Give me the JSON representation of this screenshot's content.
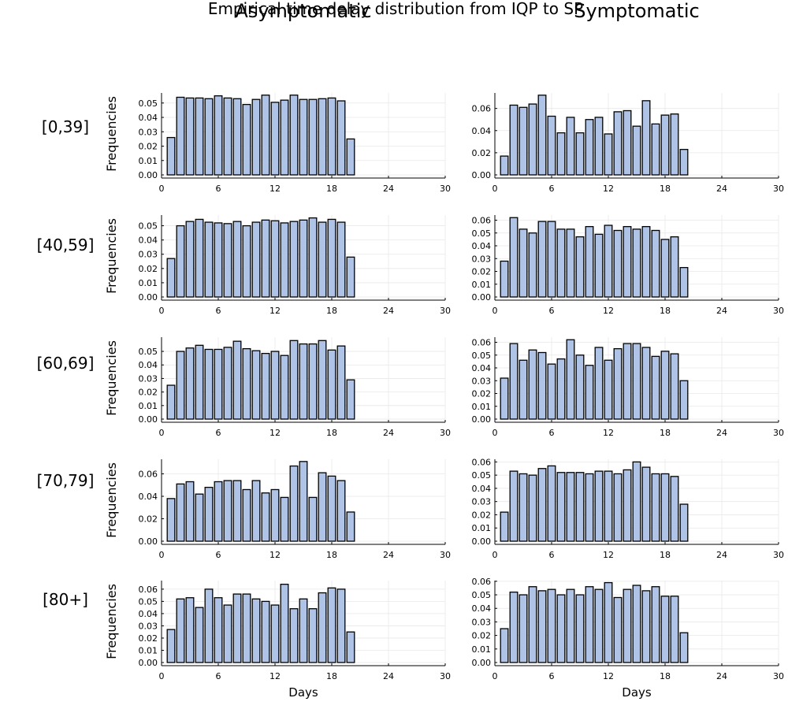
{
  "figure": {
    "title": "Empirical time delay distribution from IQP to SP",
    "column_titles": [
      "Asymptomatic",
      "Symptomatic"
    ],
    "row_labels": [
      "[0,39]",
      "[40,59]",
      "[60,69]",
      "[70,79]",
      "[80+]"
    ],
    "ylabel": "Frequencies",
    "xlabel": "Days"
  },
  "chart_data": [
    {
      "type": "bar",
      "group": "[0,39]",
      "panel": "Asymptomatic",
      "ylabel": "Frequencies",
      "xlabel": "",
      "xlim": [
        0,
        30
      ],
      "ylim": [
        0,
        0.057
      ],
      "xticks": [
        0,
        6,
        12,
        18,
        24,
        30
      ],
      "yticks": [
        0.0,
        0.01,
        0.02,
        0.03,
        0.04,
        0.05
      ],
      "x": [
        1,
        2,
        3,
        4,
        5,
        6,
        7,
        8,
        9,
        10,
        11,
        12,
        13,
        14,
        15,
        16,
        17,
        18,
        19,
        20
      ],
      "values": [
        0.026,
        0.054,
        0.0535,
        0.0535,
        0.053,
        0.055,
        0.0535,
        0.053,
        0.049,
        0.0525,
        0.0555,
        0.0505,
        0.052,
        0.0555,
        0.0525,
        0.0525,
        0.053,
        0.0535,
        0.0515,
        0.025
      ]
    },
    {
      "type": "bar",
      "group": "[0,39]",
      "panel": "Symptomatic",
      "ylabel": "",
      "xlabel": "",
      "xlim": [
        0,
        30
      ],
      "ylim": [
        0,
        0.074
      ],
      "xticks": [
        0,
        6,
        12,
        18,
        24,
        30
      ],
      "yticks": [
        0.0,
        0.02,
        0.04,
        0.06
      ],
      "x": [
        1,
        2,
        3,
        4,
        5,
        6,
        7,
        8,
        9,
        10,
        11,
        12,
        13,
        14,
        15,
        16,
        17,
        18,
        19,
        20
      ],
      "values": [
        0.017,
        0.063,
        0.061,
        0.064,
        0.072,
        0.053,
        0.038,
        0.052,
        0.038,
        0.05,
        0.052,
        0.037,
        0.057,
        0.058,
        0.044,
        0.067,
        0.046,
        0.054,
        0.055,
        0.023
      ]
    },
    {
      "type": "bar",
      "group": "[40,59]",
      "panel": "Asymptomatic",
      "ylabel": "Frequencies",
      "xlabel": "",
      "xlim": [
        0,
        30
      ],
      "ylim": [
        0,
        0.0575
      ],
      "xticks": [
        0,
        6,
        12,
        18,
        24,
        30
      ],
      "yticks": [
        0.0,
        0.01,
        0.02,
        0.03,
        0.04,
        0.05
      ],
      "x": [
        1,
        2,
        3,
        4,
        5,
        6,
        7,
        8,
        9,
        10,
        11,
        12,
        13,
        14,
        15,
        16,
        17,
        18,
        19,
        20
      ],
      "values": [
        0.027,
        0.05,
        0.053,
        0.0545,
        0.0525,
        0.052,
        0.0515,
        0.053,
        0.05,
        0.0525,
        0.054,
        0.0535,
        0.052,
        0.053,
        0.054,
        0.0555,
        0.0525,
        0.0545,
        0.0525,
        0.028
      ]
    },
    {
      "type": "bar",
      "group": "[40,59]",
      "panel": "Symptomatic",
      "ylabel": "",
      "xlabel": "",
      "xlim": [
        0,
        30
      ],
      "ylim": [
        0,
        0.064
      ],
      "xticks": [
        0,
        6,
        12,
        18,
        24,
        30
      ],
      "yticks": [
        0.0,
        0.01,
        0.02,
        0.03,
        0.04,
        0.05,
        0.06
      ],
      "x": [
        1,
        2,
        3,
        4,
        5,
        6,
        7,
        8,
        9,
        10,
        11,
        12,
        13,
        14,
        15,
        16,
        17,
        18,
        19,
        20
      ],
      "values": [
        0.028,
        0.062,
        0.053,
        0.05,
        0.059,
        0.059,
        0.053,
        0.053,
        0.047,
        0.055,
        0.049,
        0.056,
        0.052,
        0.055,
        0.053,
        0.055,
        0.052,
        0.045,
        0.047,
        0.023
      ]
    },
    {
      "type": "bar",
      "group": "[60,69]",
      "panel": "Asymptomatic",
      "ylabel": "Frequencies",
      "xlabel": "",
      "xlim": [
        0,
        30
      ],
      "ylim": [
        0,
        0.0605
      ],
      "xticks": [
        0,
        6,
        12,
        18,
        24,
        30
      ],
      "yticks": [
        0.0,
        0.01,
        0.02,
        0.03,
        0.04,
        0.05
      ],
      "x": [
        1,
        2,
        3,
        4,
        5,
        6,
        7,
        8,
        9,
        10,
        11,
        12,
        13,
        14,
        15,
        16,
        17,
        18,
        19,
        20
      ],
      "values": [
        0.025,
        0.05,
        0.0525,
        0.0545,
        0.0515,
        0.0515,
        0.053,
        0.0575,
        0.052,
        0.0505,
        0.0485,
        0.05,
        0.047,
        0.058,
        0.0555,
        0.0555,
        0.058,
        0.051,
        0.054,
        0.029
      ]
    },
    {
      "type": "bar",
      "group": "[60,69]",
      "panel": "Symptomatic",
      "ylabel": "",
      "xlabel": "",
      "xlim": [
        0,
        30
      ],
      "ylim": [
        0,
        0.064
      ],
      "xticks": [
        0,
        6,
        12,
        18,
        24,
        30
      ],
      "yticks": [
        0.0,
        0.01,
        0.02,
        0.03,
        0.04,
        0.05,
        0.06
      ],
      "x": [
        1,
        2,
        3,
        4,
        5,
        6,
        7,
        8,
        9,
        10,
        11,
        12,
        13,
        14,
        15,
        16,
        17,
        18,
        19,
        20
      ],
      "values": [
        0.032,
        0.059,
        0.046,
        0.054,
        0.052,
        0.043,
        0.047,
        0.062,
        0.05,
        0.042,
        0.056,
        0.046,
        0.055,
        0.059,
        0.059,
        0.056,
        0.049,
        0.053,
        0.051,
        0.03
      ]
    },
    {
      "type": "bar",
      "group": "[70,79]",
      "panel": "Asymptomatic",
      "ylabel": "Frequencies",
      "xlabel": "",
      "xlim": [
        0,
        30
      ],
      "ylim": [
        0,
        0.073
      ],
      "xticks": [
        0,
        6,
        12,
        18,
        24,
        30
      ],
      "yticks": [
        0.0,
        0.02,
        0.04,
        0.06
      ],
      "x": [
        1,
        2,
        3,
        4,
        5,
        6,
        7,
        8,
        9,
        10,
        11,
        12,
        13,
        14,
        15,
        16,
        17,
        18,
        19,
        20
      ],
      "values": [
        0.038,
        0.051,
        0.053,
        0.042,
        0.048,
        0.053,
        0.054,
        0.054,
        0.046,
        0.054,
        0.043,
        0.046,
        0.039,
        0.067,
        0.071,
        0.039,
        0.061,
        0.058,
        0.054,
        0.026
      ]
    },
    {
      "type": "bar",
      "group": "[70,79]",
      "panel": "Symptomatic",
      "ylabel": "",
      "xlabel": "",
      "xlim": [
        0,
        30
      ],
      "ylim": [
        0,
        0.062
      ],
      "xticks": [
        0,
        6,
        12,
        18,
        24,
        30
      ],
      "yticks": [
        0.0,
        0.01,
        0.02,
        0.03,
        0.04,
        0.05,
        0.06
      ],
      "x": [
        1,
        2,
        3,
        4,
        5,
        6,
        7,
        8,
        9,
        10,
        11,
        12,
        13,
        14,
        15,
        16,
        17,
        18,
        19,
        20
      ],
      "values": [
        0.022,
        0.053,
        0.051,
        0.05,
        0.055,
        0.057,
        0.052,
        0.052,
        0.052,
        0.051,
        0.053,
        0.053,
        0.051,
        0.054,
        0.06,
        0.056,
        0.051,
        0.051,
        0.049,
        0.028
      ]
    },
    {
      "type": "bar",
      "group": "[80+]",
      "panel": "Asymptomatic",
      "ylabel": "Frequencies",
      "xlabel": "Days",
      "xlim": [
        0,
        30
      ],
      "ylim": [
        0,
        0.067
      ],
      "xticks": [
        0,
        6,
        12,
        18,
        24,
        30
      ],
      "yticks": [
        0.0,
        0.01,
        0.02,
        0.03,
        0.04,
        0.05,
        0.06
      ],
      "x": [
        1,
        2,
        3,
        4,
        5,
        6,
        7,
        8,
        9,
        10,
        11,
        12,
        13,
        14,
        15,
        16,
        17,
        18,
        19,
        20
      ],
      "values": [
        0.027,
        0.052,
        0.053,
        0.045,
        0.06,
        0.053,
        0.047,
        0.056,
        0.056,
        0.052,
        0.05,
        0.047,
        0.064,
        0.044,
        0.052,
        0.044,
        0.057,
        0.061,
        0.06,
        0.025
      ]
    },
    {
      "type": "bar",
      "group": "[80+]",
      "panel": "Symptomatic",
      "ylabel": "",
      "xlabel": "Days",
      "xlim": [
        0,
        30
      ],
      "ylim": [
        0,
        0.0605
      ],
      "xticks": [
        0,
        6,
        12,
        18,
        24,
        30
      ],
      "yticks": [
        0.0,
        0.01,
        0.02,
        0.03,
        0.04,
        0.05,
        0.06
      ],
      "x": [
        1,
        2,
        3,
        4,
        5,
        6,
        7,
        8,
        9,
        10,
        11,
        12,
        13,
        14,
        15,
        16,
        17,
        18,
        19,
        20
      ],
      "values": [
        0.025,
        0.052,
        0.05,
        0.056,
        0.053,
        0.054,
        0.05,
        0.054,
        0.05,
        0.056,
        0.054,
        0.059,
        0.048,
        0.054,
        0.057,
        0.053,
        0.056,
        0.049,
        0.049,
        0.022
      ]
    }
  ]
}
